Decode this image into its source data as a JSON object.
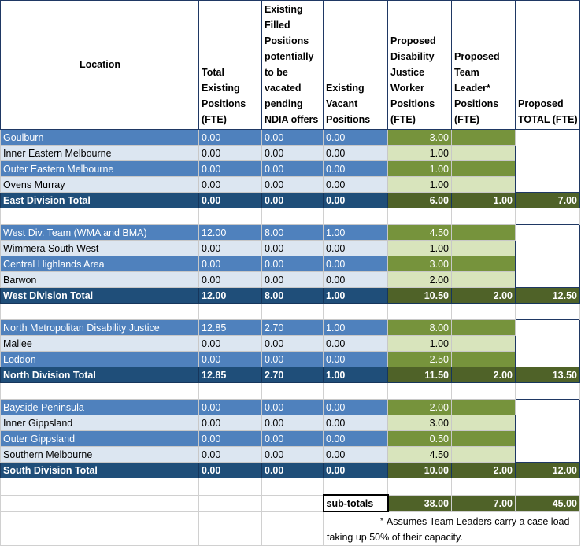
{
  "headers": {
    "location": "Location",
    "total_existing": "Total Existing Positions (FTE)",
    "filled": "Existing Filled Positions potentially to be vacated pending NDIA offers",
    "vacant": "Existing Vacant Positions",
    "worker": "Proposed Disability Justice Worker Positions (FTE)",
    "team_leader": "Proposed Team Leader* Positions (FTE)",
    "total": "Proposed TOTAL (FTE)"
  },
  "divisions": [
    {
      "rows": [
        {
          "location": "Goulburn",
          "total_existing": "0.00",
          "filled": "0.00",
          "vacant": "0.00",
          "worker": "3.00"
        },
        {
          "location": "Inner Eastern Melbourne",
          "total_existing": "0.00",
          "filled": "0.00",
          "vacant": "0.00",
          "worker": "1.00"
        },
        {
          "location": "Outer Eastern Melbourne",
          "total_existing": "0.00",
          "filled": "0.00",
          "vacant": "0.00",
          "worker": "1.00"
        },
        {
          "location": "Ovens Murray",
          "total_existing": "0.00",
          "filled": "0.00",
          "vacant": "0.00",
          "worker": "1.00"
        }
      ],
      "total": {
        "location": "East Division Total",
        "total_existing": "0.00",
        "filled": "0.00",
        "vacant": "0.00",
        "worker": "6.00",
        "team_leader": "1.00",
        "total": "7.00"
      }
    },
    {
      "rows": [
        {
          "location": "West Div. Team (WMA and BMA)",
          "total_existing": "12.00",
          "filled": "8.00",
          "vacant": "1.00",
          "worker": "4.50"
        },
        {
          "location": "Wimmera South West",
          "total_existing": "0.00",
          "filled": "0.00",
          "vacant": "0.00",
          "worker": "1.00"
        },
        {
          "location": "Central Highlands Area",
          "total_existing": "0.00",
          "filled": "0.00",
          "vacant": "0.00",
          "worker": "3.00"
        },
        {
          "location": "Barwon",
          "total_existing": "0.00",
          "filled": "0.00",
          "vacant": "0.00",
          "worker": "2.00"
        }
      ],
      "total": {
        "location": "West Division Total",
        "total_existing": "12.00",
        "filled": "8.00",
        "vacant": "1.00",
        "worker": "10.50",
        "team_leader": "2.00",
        "total": "12.50"
      }
    },
    {
      "rows": [
        {
          "location": "North Metropolitan Disability Justice",
          "total_existing": "12.85",
          "filled": "2.70",
          "vacant": "1.00",
          "worker": "8.00"
        },
        {
          "location": "Mallee",
          "total_existing": "0.00",
          "filled": "0.00",
          "vacant": "0.00",
          "worker": "1.00"
        },
        {
          "location": "Loddon",
          "total_existing": "0.00",
          "filled": "0.00",
          "vacant": "0.00",
          "worker": "2.50"
        }
      ],
      "total": {
        "location": "North Division Total",
        "total_existing": "12.85",
        "filled": "2.70",
        "vacant": "1.00",
        "worker": "11.50",
        "team_leader": "2.00",
        "total": "13.50"
      }
    },
    {
      "rows": [
        {
          "location": "Bayside Peninsula",
          "total_existing": "0.00",
          "filled": "0.00",
          "vacant": "0.00",
          "worker": "2.00"
        },
        {
          "location": "Inner Gippsland",
          "total_existing": "0.00",
          "filled": "0.00",
          "vacant": "0.00",
          "worker": "3.00"
        },
        {
          "location": "Outer Gippsland",
          "total_existing": "0.00",
          "filled": "0.00",
          "vacant": "0.00",
          "worker": "0.50"
        },
        {
          "location": "Southern Melbourne",
          "total_existing": "0.00",
          "filled": "0.00",
          "vacant": "0.00",
          "worker": "4.50"
        }
      ],
      "total": {
        "location": "South Division Total",
        "total_existing": "0.00",
        "filled": "0.00",
        "vacant": "0.00",
        "worker": "10.00",
        "team_leader": "2.00",
        "total": "12.00"
      }
    }
  ],
  "subtotals": {
    "label": "sub-totals",
    "worker": "38.00",
    "team_leader": "7.00",
    "total": "45.00"
  },
  "footnote": {
    "marker": "*",
    "text": "Assumes Team Leaders carry a case load taking up 50% of their capacity."
  },
  "colors": {
    "row_dark": "#4f81bd",
    "row_light": "#dce6f1",
    "total_row": "#1f4e79",
    "green_dark": "#76933c",
    "green_light": "#d8e4bc",
    "green_total": "#4f6228"
  }
}
